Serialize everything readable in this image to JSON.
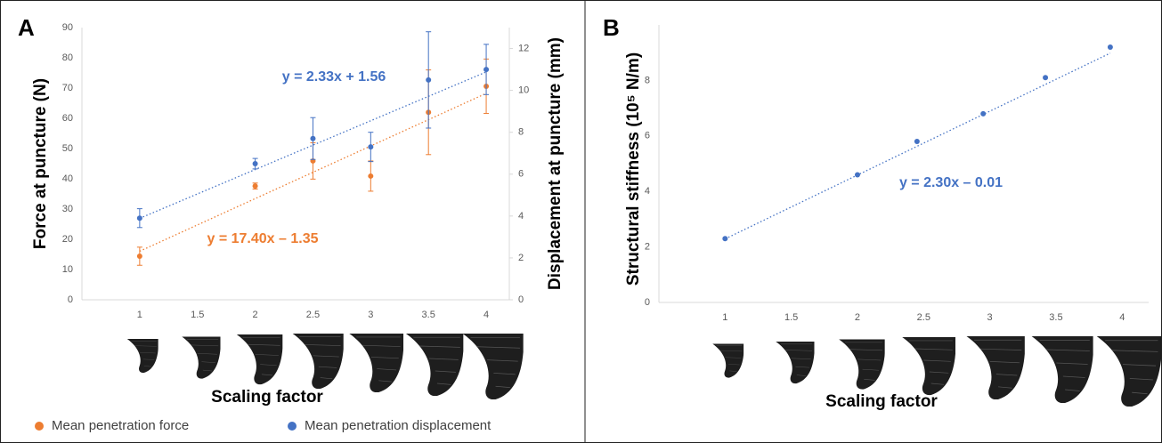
{
  "chart_data": [
    {
      "type": "scatter",
      "panel_label": "A",
      "x": [
        1,
        2,
        2.5,
        3,
        3.5,
        4
      ],
      "x_label": "Scaling factor",
      "y_label": "Force at puncture (N)",
      "y2_label": "Displacement at puncture (mm)",
      "xlim": [
        0.5,
        4.2
      ],
      "xticks": [
        1,
        1.5,
        2,
        2.5,
        3,
        3.5,
        4
      ],
      "ylim": [
        0,
        90
      ],
      "yticks": [
        0,
        10,
        20,
        30,
        40,
        50,
        60,
        70,
        80,
        90
      ],
      "y2lim": [
        0,
        13
      ],
      "y2ticks": [
        0,
        2,
        4,
        6,
        8,
        10,
        12
      ],
      "legend": "bottom",
      "series": [
        {
          "name": "Mean penetration force",
          "color": "#ed7d31",
          "values": [
            14.4,
            37.6,
            45.9,
            40.9,
            62.0,
            70.6
          ],
          "errors": [
            3,
            1,
            6,
            5,
            14,
            9
          ],
          "trendline": {
            "label": "y = 17.40x – 1.35",
            "slope": 17.4,
            "intercept": -1.35
          }
        },
        {
          "name": "Mean penetration displacement",
          "color": "#4472c4",
          "axis": "y2",
          "values": [
            3.9,
            6.5,
            7.7,
            7.3,
            10.5,
            11.0
          ],
          "errors": [
            0.45,
            0.25,
            1.0,
            0.7,
            2.3,
            1.2
          ],
          "trendline": {
            "label": "y = 2.33x + 1.56",
            "slope": 2.33,
            "intercept": 1.56
          }
        }
      ]
    },
    {
      "type": "scatter",
      "panel_label": "B",
      "x": [
        1,
        2,
        2.45,
        2.95,
        3.42,
        3.91
      ],
      "x_label": "Scaling factor",
      "y_label": "Structural stiffness (10⁵ N/m)",
      "xlim": [
        0.5,
        4.2
      ],
      "xticks": [
        1,
        1.5,
        2,
        2.5,
        3,
        3.5,
        4
      ],
      "ylim": [
        0,
        10
      ],
      "yticks": [
        0,
        2,
        4,
        6,
        8
      ],
      "series": [
        {
          "color": "#4472c4",
          "values": [
            2.3,
            4.6,
            5.8,
            6.8,
            8.1,
            9.2
          ],
          "trendline": {
            "label": "y = 2.30x – 0.01",
            "slope": 2.3,
            "intercept": -0.01
          }
        }
      ]
    }
  ]
}
